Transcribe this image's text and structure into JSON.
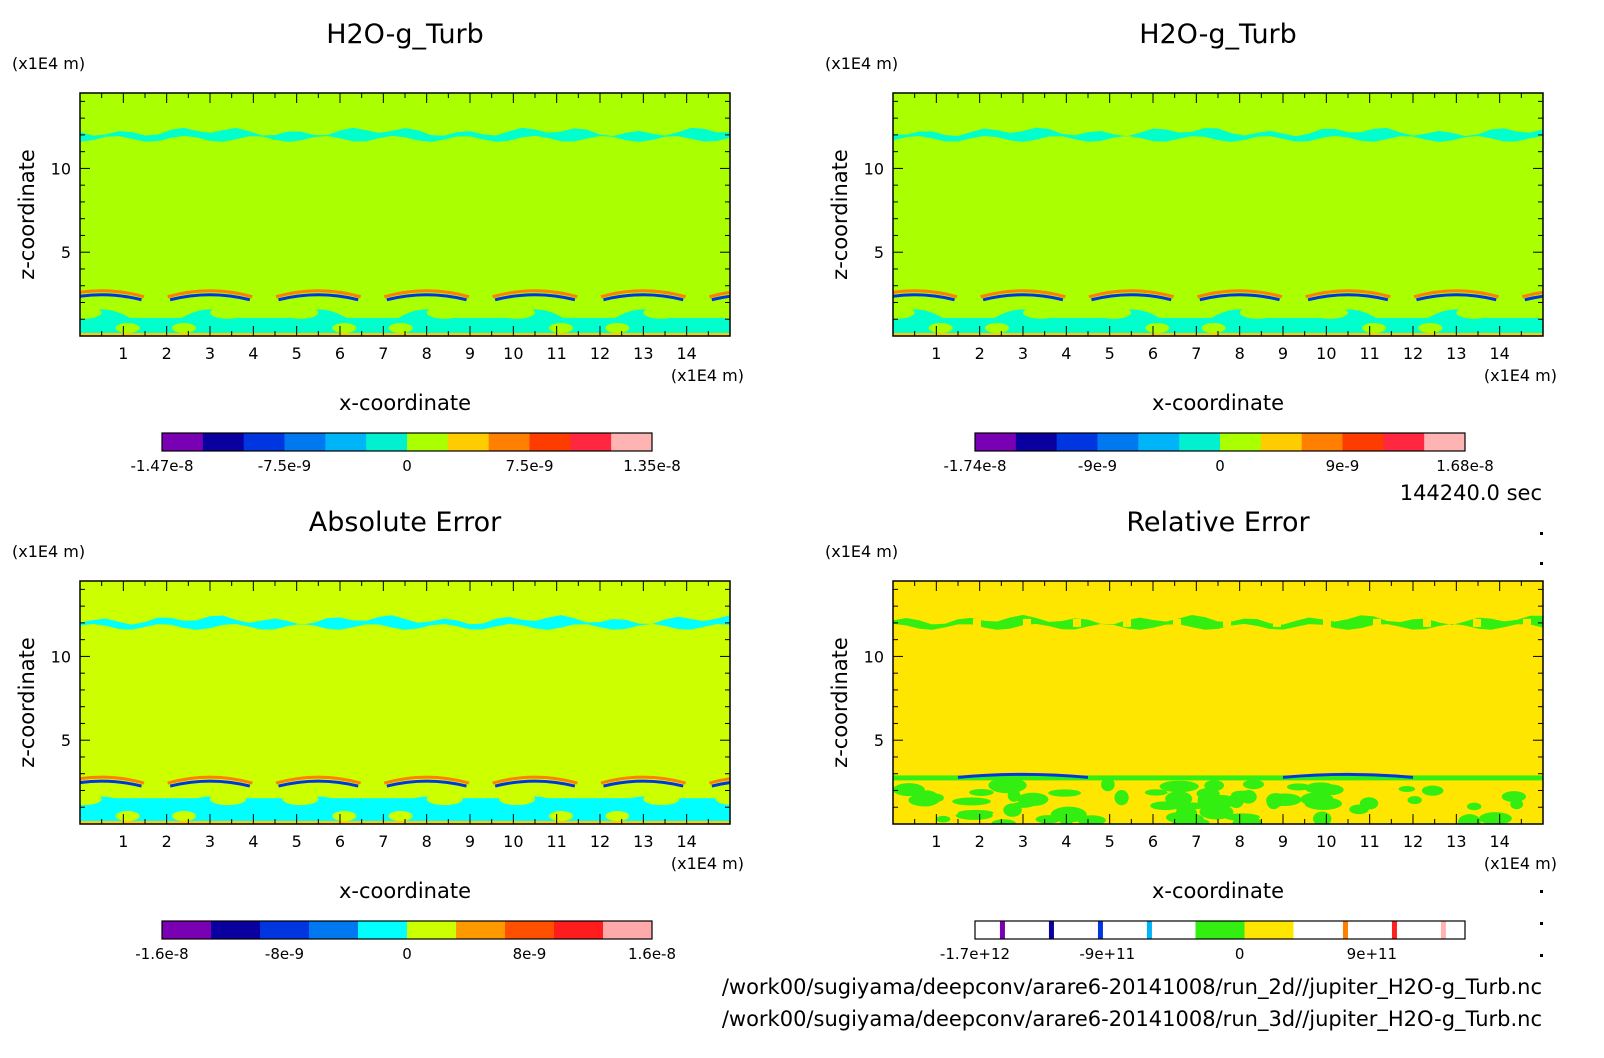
{
  "time_label": "144240.0 sec",
  "file_paths": [
    "/work00/sugiyama/deepconv/arare6-20141008/run_2d//jupiter_H2O-g_Turb.nc",
    "/work00/sugiyama/deepconv/arare6-20141008/run_3d//jupiter_H2O-g_Turb.nc"
  ],
  "chart_data": [
    {
      "type": "heatmap",
      "title": "H2O-g_Turb",
      "xlabel": "x-coordinate",
      "ylabel": "z-coordinate",
      "x_unit": "(x1E4 m)",
      "y_unit": "(x1E4 m)",
      "xlim": [
        0,
        15
      ],
      "ylim": [
        0,
        14.5
      ],
      "xticks": [
        "1",
        "2",
        "3",
        "4",
        "5",
        "6",
        "7",
        "8",
        "9",
        "10",
        "11",
        "12",
        "13",
        "14"
      ],
      "yticks": [
        "5",
        "10"
      ],
      "background": "#aaff00",
      "features": {
        "upper_band_z": 12,
        "lower_layer_top_z": 2.7,
        "pattern": "swirl",
        "pattern_color": "#00ffcc"
      },
      "colorbar": {
        "colors": [
          "#7a00b4",
          "#0a00a0",
          "#0036e0",
          "#0078f0",
          "#00b4f8",
          "#00f0d0",
          "#aaff00",
          "#ffcc00",
          "#ff8000",
          "#ff3c00",
          "#ff2840",
          "#ffb4b4"
        ],
        "labels": [
          "-1.47e-8",
          "-7.5e-9",
          "0",
          "7.5e-9",
          "1.35e-8"
        ]
      }
    },
    {
      "type": "heatmap",
      "title": "H2O-g_Turb",
      "xlabel": "x-coordinate",
      "ylabel": "z-coordinate",
      "x_unit": "(x1E4 m)",
      "y_unit": "(x1E4 m)",
      "xlim": [
        0,
        15
      ],
      "ylim": [
        0,
        14.5
      ],
      "xticks": [
        "1",
        "2",
        "3",
        "4",
        "5",
        "6",
        "7",
        "8",
        "9",
        "10",
        "11",
        "12",
        "13",
        "14"
      ],
      "yticks": [
        "5",
        "10"
      ],
      "background": "#aaff00",
      "features": {
        "upper_band_z": 12,
        "lower_layer_top_z": 2.7,
        "pattern": "arch",
        "pattern_color": "#00ffcc"
      },
      "colorbar": {
        "colors": [
          "#7a00b4",
          "#0a00a0",
          "#0036e0",
          "#0078f0",
          "#00b4f8",
          "#00f0d0",
          "#aaff00",
          "#ffcc00",
          "#ff8000",
          "#ff3c00",
          "#ff2840",
          "#ffb4b4"
        ],
        "labels": [
          "-1.74e-8",
          "-9e-9",
          "0",
          "9e-9",
          "1.68e-8"
        ]
      }
    },
    {
      "type": "heatmap",
      "title": "Absolute Error",
      "xlabel": "x-coordinate",
      "ylabel": "z-coordinate",
      "x_unit": "(x1E4 m)",
      "y_unit": "(x1E4 m)",
      "xlim": [
        0,
        15
      ],
      "ylim": [
        0,
        14.5
      ],
      "xticks": [
        "1",
        "2",
        "3",
        "4",
        "5",
        "6",
        "7",
        "8",
        "9",
        "10",
        "11",
        "12",
        "13",
        "14"
      ],
      "yticks": [
        "5",
        "10"
      ],
      "background": "#ccff00",
      "features": {
        "upper_band_z": 12,
        "lower_layer_top_z": 2.8,
        "pattern": "turb",
        "pattern_color": "#00ffff"
      },
      "colorbar": {
        "colors": [
          "#7a00b4",
          "#0a00a0",
          "#0036e0",
          "#0078f0",
          "#00ffff",
          "#ccff00",
          "#ff9900",
          "#ff5000",
          "#ff1c1c",
          "#ffaaaa"
        ],
        "labels": [
          "-1.6e-8",
          "-8e-9",
          "0",
          "8e-9",
          "1.6e-8"
        ]
      }
    },
    {
      "type": "heatmap",
      "title": "Relative Error",
      "xlabel": "x-coordinate",
      "ylabel": "z-coordinate",
      "x_unit": "(x1E4 m)",
      "y_unit": "(x1E4 m)",
      "xlim": [
        0,
        15
      ],
      "ylim": [
        0,
        14.5
      ],
      "xticks": [
        "1",
        "2",
        "3",
        "4",
        "5",
        "6",
        "7",
        "8",
        "9",
        "10",
        "11",
        "12",
        "13",
        "14"
      ],
      "yticks": [
        "5",
        "10"
      ],
      "background": "#ffe600",
      "features": {
        "upper_band_z": 12,
        "lower_layer_top_z": 2.9,
        "pattern": "patches",
        "pattern_color": "#33ee11"
      },
      "colorbar": {
        "colors": [
          "#ffffff",
          "#7a00b4",
          "#ffffff",
          "#0a00a0",
          "#ffffff",
          "#0036e0",
          "#ffffff",
          "#00b4f8",
          "#ffffff",
          "#33ee11",
          "#ffe600",
          "#ffffff",
          "#ff8000",
          "#ffffff",
          "#ff2020",
          "#ffffff",
          "#ffb4b4",
          "#ffffff"
        ],
        "labels": [
          "-1.7e+12",
          "-9e+11",
          "0",
          "9e+11"
        ]
      }
    }
  ]
}
